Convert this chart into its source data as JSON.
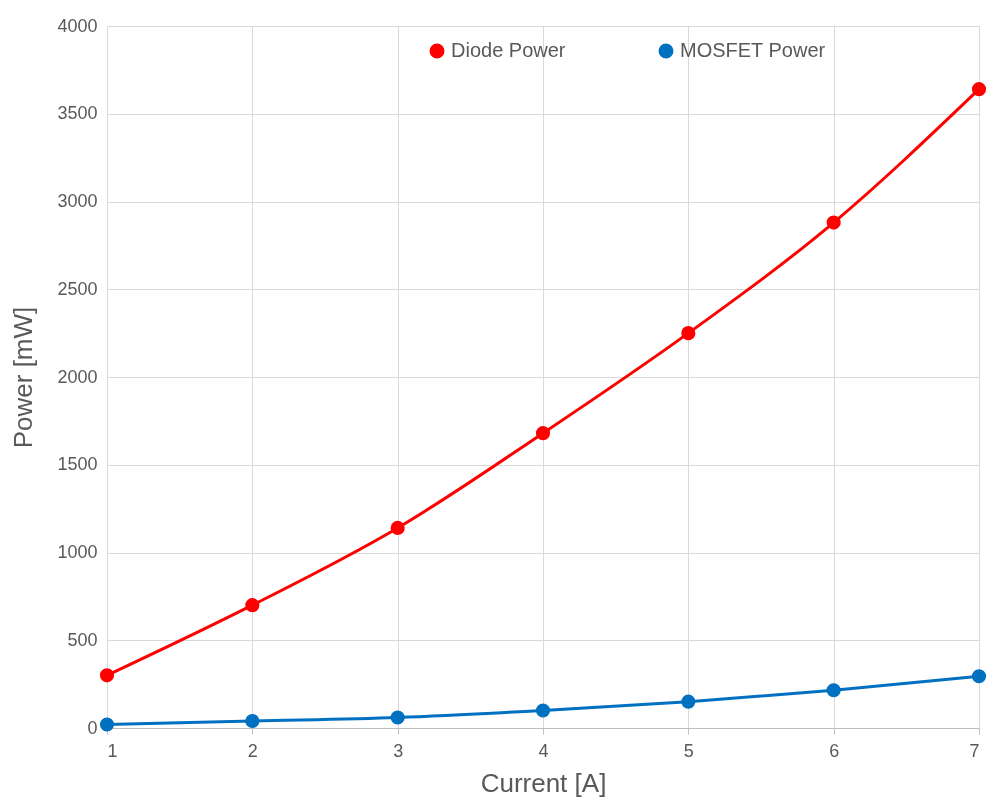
{
  "chart_data": {
    "type": "line",
    "xlabel": "Current [A]",
    "ylabel": "Power [mW]",
    "x": [
      1,
      2,
      3,
      4,
      5,
      6,
      7
    ],
    "series": [
      {
        "name": "Diode Power",
        "color": "#ff0000",
        "values": [
          300,
          700,
          1140,
          1680,
          2250,
          2880,
          3640
        ]
      },
      {
        "name": "MOSFET Power",
        "color": "#0070c0",
        "values": [
          20,
          40,
          60,
          100,
          150,
          215,
          295
        ]
      }
    ],
    "xlim": [
      1,
      7
    ],
    "xticks": [
      1,
      2,
      3,
      4,
      5,
      6,
      7
    ],
    "ylim": [
      0,
      4000
    ],
    "yticks": [
      0,
      500,
      1000,
      1500,
      2000,
      2500,
      3000,
      3500,
      4000
    ],
    "grid": true,
    "legend": "top",
    "marker": "circle",
    "line_style": "solid"
  }
}
